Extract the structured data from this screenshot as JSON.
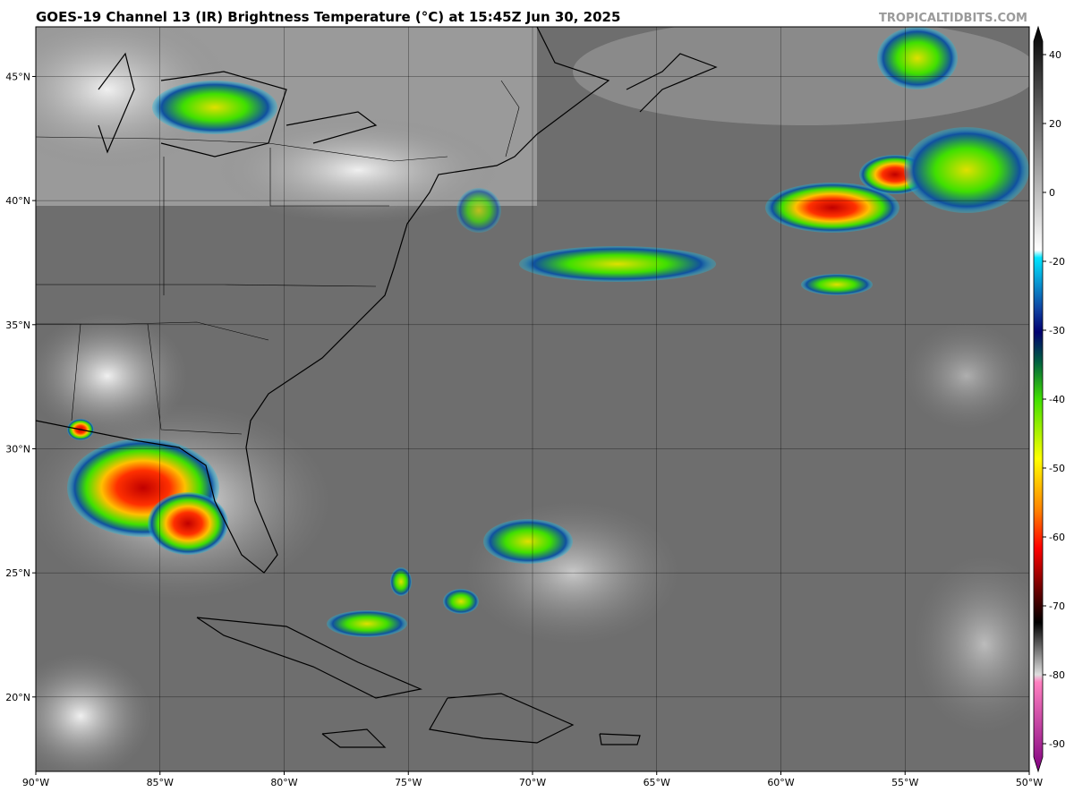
{
  "header": {
    "title": "GOES-19 Channel 13 (IR) Brightness Temperature (°C) at 15:45Z Jun 30, 2025",
    "watermark": "TROPICALTIDBITS.COM"
  },
  "map": {
    "lonlim": [
      -90,
      -50
    ],
    "latlim": [
      17,
      47
    ],
    "lat_ticks": [
      {
        "value": 45,
        "label": "45°N"
      },
      {
        "value": 40,
        "label": "40°N"
      },
      {
        "value": 35,
        "label": "35°N"
      },
      {
        "value": 30,
        "label": "30°N"
      },
      {
        "value": 25,
        "label": "25°N"
      },
      {
        "value": 20,
        "label": "20°N"
      }
    ],
    "lon_ticks": [
      {
        "value": -90,
        "label": "90°W"
      },
      {
        "value": -85,
        "label": "85°W"
      },
      {
        "value": -80,
        "label": "80°W"
      },
      {
        "value": -75,
        "label": "75°W"
      },
      {
        "value": -70,
        "label": "70°W"
      },
      {
        "value": -65,
        "label": "65°W"
      },
      {
        "value": -60,
        "label": "60°W"
      },
      {
        "value": -55,
        "label": "55°W"
      },
      {
        "value": -50,
        "label": "50°W"
      }
    ]
  },
  "colorbar": {
    "ticks": [
      40,
      20,
      0,
      -20,
      -30,
      -40,
      -50,
      -60,
      -70,
      -80,
      -90
    ]
  }
}
